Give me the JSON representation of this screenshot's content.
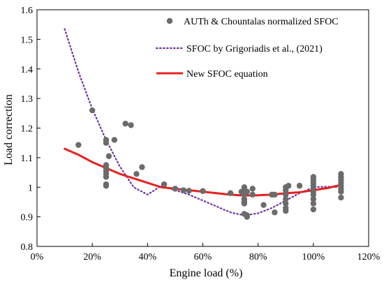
{
  "chart_data": {
    "type": "scatter",
    "xlabel": "Engine load (%)",
    "ylabel": "Load correction",
    "xlim": [
      0,
      120
    ],
    "ylim": [
      0.8,
      1.6
    ],
    "x_ticks": [
      "0%",
      "20%",
      "40%",
      "60%",
      "80%",
      "100%",
      "120%"
    ],
    "y_ticks": [
      "0.8",
      "0.9",
      "1",
      "1.1",
      "1.2",
      "1.3",
      "1.4",
      "1.5",
      "1.6"
    ],
    "grid": false,
    "legend_position": "top-right",
    "series": [
      {
        "name": "AUTh & Chountalas normalized SFOC",
        "kind": "scatter",
        "color": "#6b6b6b",
        "points": [
          [
            15,
            1.143
          ],
          [
            20,
            1.26
          ],
          [
            25,
            1.16
          ],
          [
            25,
            1.15
          ],
          [
            25,
            1.075
          ],
          [
            25,
            1.065
          ],
          [
            25,
            1.055
          ],
          [
            25,
            1.045
          ],
          [
            25,
            1.035
          ],
          [
            25,
            1.01
          ],
          [
            25,
            1.005
          ],
          [
            26,
            1.105
          ],
          [
            28,
            1.16
          ],
          [
            32,
            1.215
          ],
          [
            34,
            1.21
          ],
          [
            36,
            1.045
          ],
          [
            38,
            1.068
          ],
          [
            46,
            1.01
          ],
          [
            50,
            0.995
          ],
          [
            53,
            0.99
          ],
          [
            55,
            0.988
          ],
          [
            60,
            0.987
          ],
          [
            70,
            0.98
          ],
          [
            74,
            0.985
          ],
          [
            75,
            1.0
          ],
          [
            75,
            0.99
          ],
          [
            75,
            0.975
          ],
          [
            75,
            0.96
          ],
          [
            75,
            0.95
          ],
          [
            75,
            0.945
          ],
          [
            75,
            0.91
          ],
          [
            76,
            0.905
          ],
          [
            76,
            0.9
          ],
          [
            76,
            0.985
          ],
          [
            78,
            0.995
          ],
          [
            78,
            0.975
          ],
          [
            82,
            0.94
          ],
          [
            85,
            0.975
          ],
          [
            86,
            0.915
          ],
          [
            86,
            0.975
          ],
          [
            90,
            1.0
          ],
          [
            90,
            0.99
          ],
          [
            90,
            0.975
          ],
          [
            90,
            0.96
          ],
          [
            90,
            0.945
          ],
          [
            90,
            0.93
          ],
          [
            90,
            0.92
          ],
          [
            91,
            1.005
          ],
          [
            95,
            1.005
          ],
          [
            100,
            1.035
          ],
          [
            100,
            1.025
          ],
          [
            100,
            1.015
          ],
          [
            100,
            1.005
          ],
          [
            100,
            0.995
          ],
          [
            100,
            0.985
          ],
          [
            100,
            0.975
          ],
          [
            100,
            0.96
          ],
          [
            100,
            0.945
          ],
          [
            100,
            0.925
          ],
          [
            110,
            1.045
          ],
          [
            110,
            1.035
          ],
          [
            110,
            1.025
          ],
          [
            110,
            1.015
          ],
          [
            110,
            1.005
          ],
          [
            110,
            0.995
          ],
          [
            110,
            0.985
          ],
          [
            110,
            0.965
          ]
        ]
      },
      {
        "name": "SFOC by Grigoriadis et al., (2021)",
        "kind": "dotted-line",
        "color": "#7030a0",
        "points": [
          [
            10,
            1.535
          ],
          [
            15,
            1.39
          ],
          [
            20,
            1.265
          ],
          [
            25,
            1.16
          ],
          [
            30,
            1.07
          ],
          [
            35,
            1.0
          ],
          [
            40,
            0.975
          ],
          [
            45,
            1.005
          ],
          [
            50,
            0.99
          ],
          [
            55,
            0.975
          ],
          [
            60,
            0.955
          ],
          [
            65,
            0.935
          ],
          [
            70,
            0.915
          ],
          [
            75,
            0.905
          ],
          [
            80,
            0.912
          ],
          [
            85,
            0.93
          ],
          [
            90,
            0.955
          ],
          [
            95,
            0.98
          ],
          [
            100,
            1.0
          ],
          [
            105,
            1.002
          ],
          [
            110,
            1.0
          ]
        ]
      },
      {
        "name": "New SFOC equation",
        "kind": "line",
        "color": "#e82020",
        "points": [
          [
            10,
            1.13
          ],
          [
            15,
            1.11
          ],
          [
            20,
            1.085
          ],
          [
            25,
            1.065
          ],
          [
            30,
            1.045
          ],
          [
            35,
            1.03
          ],
          [
            40,
            1.015
          ],
          [
            45,
            1.0
          ],
          [
            50,
            0.995
          ],
          [
            55,
            0.99
          ],
          [
            60,
            0.985
          ],
          [
            65,
            0.98
          ],
          [
            70,
            0.975
          ],
          [
            75,
            0.972
          ],
          [
            80,
            0.973
          ],
          [
            85,
            0.975
          ],
          [
            90,
            0.98
          ],
          [
            95,
            0.983
          ],
          [
            100,
            0.99
          ],
          [
            105,
            0.997
          ],
          [
            110,
            1.008
          ]
        ]
      }
    ]
  }
}
